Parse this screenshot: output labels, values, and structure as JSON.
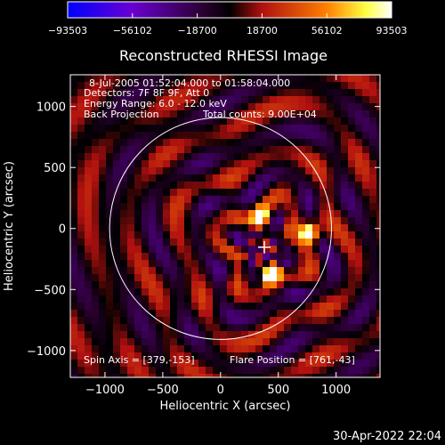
{
  "chart_data": {
    "type": "heatmap",
    "title": "Reconstructed RHESSI Image",
    "xlabel": "Heliocentric X (arcsec)",
    "ylabel": "Heliocentric Y (arcsec)",
    "xlim": [
      -1300,
      1380
    ],
    "ylim": [
      -1220,
      1260
    ],
    "xticks": [
      -1000,
      -500,
      0,
      500,
      1000
    ],
    "xtick_labels": [
      "−1000",
      "−500",
      "0",
      "500",
      "1000"
    ],
    "yticks": [
      1000,
      500,
      0,
      -500,
      -1000
    ],
    "ytick_labels": [
      "1000",
      "500",
      "0",
      "−500",
      "−1000"
    ],
    "colorbar": {
      "ticks": [
        -93503,
        -56102,
        -18700,
        18700,
        56102,
        93503
      ],
      "labels": [
        "−93503",
        "−56102",
        "−18700",
        "18700",
        "56102",
        "93503"
      ],
      "colors": [
        "#0000ff",
        "#6a00d0",
        "#000000",
        "#c01010",
        "#ff8000",
        "#ffffff"
      ]
    },
    "annotations": {
      "time_range": "8-Jul-2005 01:52:04.000 to 01:58:04.000",
      "detectors": "Detectors: 7F 8F 9F, Att 0",
      "energy": "Energy Range: 6.0 - 12.0 keV",
      "method": "Back Projection",
      "counts": "Total counts: 9.00E+04",
      "spin_axis": "Spin Axis = [379,-153]",
      "flare_position": "Flare Position = [761,-43]"
    },
    "solar_disk": {
      "center": [
        0,
        0
      ],
      "radius_arcsec": 960
    },
    "spin_axis": [
      379,
      -153
    ],
    "sources": [
      {
        "x": 761,
        "y": -43,
        "strength": 1.0
      },
      {
        "x": 340,
        "y": 95,
        "strength": 0.8
      },
      {
        "x": 430,
        "y": -370,
        "strength": 0.85
      }
    ],
    "grid": false
  },
  "footer_date": "30-Apr-2022 22:04"
}
